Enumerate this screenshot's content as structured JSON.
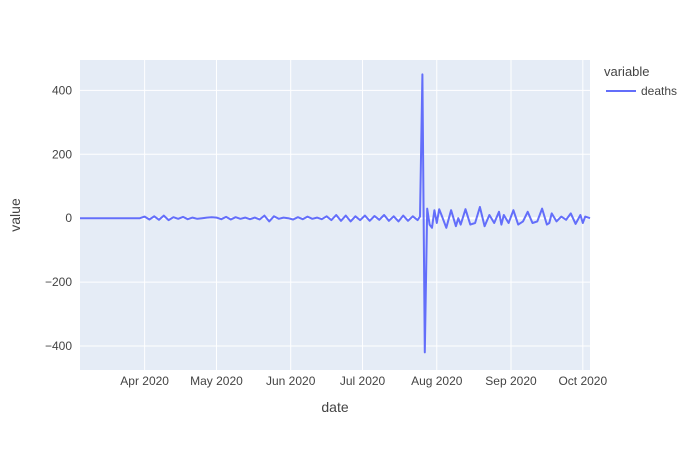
{
  "chart_data": {
    "type": "line",
    "xlabel": "date",
    "ylabel": "value",
    "legend": {
      "title": "variable",
      "position": "top-right",
      "entries": [
        "deaths"
      ]
    },
    "xlim": [
      "2020-03-05",
      "2020-10-04"
    ],
    "ylim": [
      -475,
      495
    ],
    "grid": true,
    "x_ticks": [
      {
        "date": "2020-04-01",
        "label": "Apr 2020"
      },
      {
        "date": "2020-05-01",
        "label": "May 2020"
      },
      {
        "date": "2020-06-01",
        "label": "Jun 2020"
      },
      {
        "date": "2020-07-01",
        "label": "Jul 2020"
      },
      {
        "date": "2020-08-01",
        "label": "Aug 2020"
      },
      {
        "date": "2020-09-01",
        "label": "Sep 2020"
      },
      {
        "date": "2020-10-01",
        "label": "Oct 2020"
      }
    ],
    "y_ticks": [
      {
        "value": 400,
        "label": "400"
      },
      {
        "value": 200,
        "label": "200"
      },
      {
        "value": 0,
        "label": "0"
      },
      {
        "value": -200,
        "label": "−200"
      },
      {
        "value": -400,
        "label": "−400"
      }
    ],
    "series": [
      {
        "name": "deaths",
        "color": "#636efa",
        "x": [
          "2020-03-05",
          "2020-03-10",
          "2020-03-15",
          "2020-03-20",
          "2020-03-25",
          "2020-03-30",
          "2020-04-01",
          "2020-04-03",
          "2020-04-05",
          "2020-04-07",
          "2020-04-09",
          "2020-04-11",
          "2020-04-13",
          "2020-04-15",
          "2020-04-17",
          "2020-04-19",
          "2020-04-21",
          "2020-04-23",
          "2020-04-25",
          "2020-04-27",
          "2020-04-29",
          "2020-05-01",
          "2020-05-03",
          "2020-05-05",
          "2020-05-07",
          "2020-05-09",
          "2020-05-11",
          "2020-05-13",
          "2020-05-15",
          "2020-05-17",
          "2020-05-19",
          "2020-05-21",
          "2020-05-23",
          "2020-05-25",
          "2020-05-27",
          "2020-05-29",
          "2020-05-31",
          "2020-06-02",
          "2020-06-04",
          "2020-06-06",
          "2020-06-08",
          "2020-06-10",
          "2020-06-12",
          "2020-06-14",
          "2020-06-16",
          "2020-06-18",
          "2020-06-20",
          "2020-06-22",
          "2020-06-24",
          "2020-06-26",
          "2020-06-28",
          "2020-06-30",
          "2020-07-02",
          "2020-07-04",
          "2020-07-06",
          "2020-07-08",
          "2020-07-10",
          "2020-07-12",
          "2020-07-14",
          "2020-07-16",
          "2020-07-18",
          "2020-07-20",
          "2020-07-22",
          "2020-07-24",
          "2020-07-25",
          "2020-07-26",
          "2020-07-27",
          "2020-07-28",
          "2020-07-29",
          "2020-07-30",
          "2020-07-31",
          "2020-08-01",
          "2020-08-02",
          "2020-08-03",
          "2020-08-05",
          "2020-08-07",
          "2020-08-09",
          "2020-08-10",
          "2020-08-11",
          "2020-08-13",
          "2020-08-15",
          "2020-08-17",
          "2020-08-19",
          "2020-08-21",
          "2020-08-23",
          "2020-08-25",
          "2020-08-27",
          "2020-08-28",
          "2020-08-29",
          "2020-08-31",
          "2020-09-02",
          "2020-09-04",
          "2020-09-06",
          "2020-09-08",
          "2020-09-10",
          "2020-09-12",
          "2020-09-14",
          "2020-09-16",
          "2020-09-17",
          "2020-09-18",
          "2020-09-20",
          "2020-09-22",
          "2020-09-24",
          "2020-09-26",
          "2020-09-28",
          "2020-09-30",
          "2020-10-01",
          "2020-10-02",
          "2020-10-04"
        ],
        "y": [
          0,
          0,
          0,
          0,
          0,
          0,
          5,
          -4,
          6,
          -5,
          8,
          -6,
          3,
          -2,
          4,
          -3,
          2,
          -2,
          0,
          2,
          3,
          2,
          -3,
          4,
          -4,
          3,
          -2,
          2,
          -3,
          2,
          -4,
          8,
          -10,
          6,
          -2,
          2,
          0,
          -4,
          3,
          -3,
          5,
          -2,
          2,
          -3,
          6,
          -6,
          10,
          -8,
          8,
          -10,
          6,
          -6,
          8,
          -8,
          7,
          -5,
          10,
          -8,
          6,
          -10,
          8,
          -8,
          6,
          -6,
          5,
          450,
          -420,
          30,
          -20,
          -30,
          25,
          -15,
          28,
          10,
          -30,
          25,
          -25,
          0,
          -20,
          28,
          -20,
          -15,
          35,
          -25,
          10,
          -15,
          20,
          -20,
          10,
          -15,
          25,
          -20,
          -10,
          20,
          -15,
          -10,
          30,
          -20,
          -15,
          15,
          -10,
          5,
          -5,
          15,
          -18,
          10,
          -15,
          5,
          0
        ]
      }
    ]
  }
}
